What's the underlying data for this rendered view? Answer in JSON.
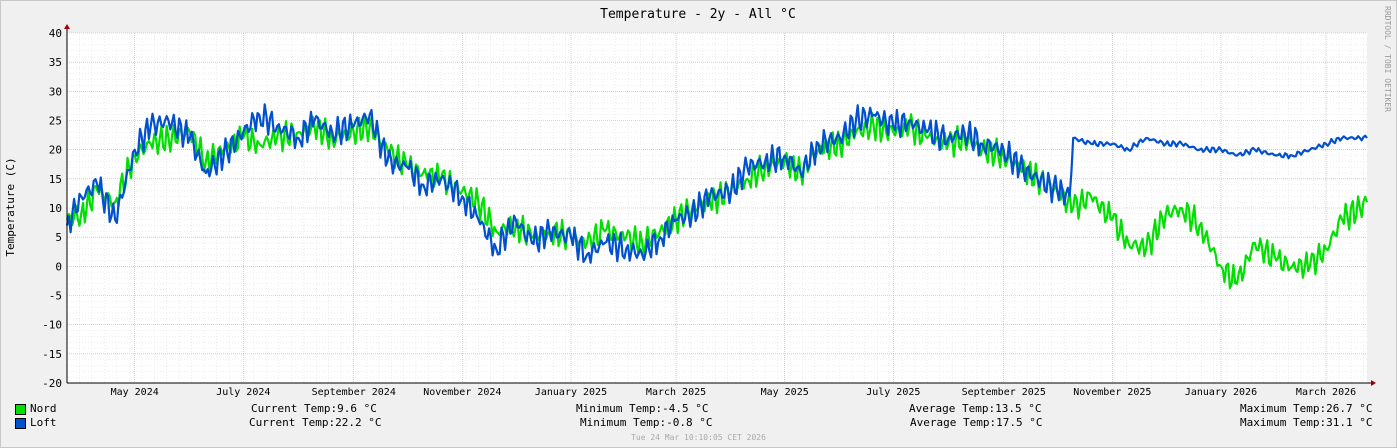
{
  "chart_data": {
    "type": "line",
    "title": "Temperature - 2y - All °C",
    "ylabel": "Temperature (C)",
    "watermark": "RRDTOOL / TOBI OETIKER",
    "timestamp": "Tue 24 Mar 10:10:05 CET 2026",
    "ylim": [
      -20,
      40
    ],
    "ytick_labels": [
      "-20",
      "-15",
      "-10",
      "-5",
      "0",
      "5",
      "10",
      "15",
      "20",
      "25",
      "30",
      "35",
      "40"
    ],
    "x_range": [
      "2024-03-24",
      "2026-03-24"
    ],
    "x_ticks": [
      {
        "date": "2024-05-01",
        "label": "May 2024"
      },
      {
        "date": "2024-07-01",
        "label": "July 2024"
      },
      {
        "date": "2024-09-01",
        "label": "September 2024"
      },
      {
        "date": "2024-11-01",
        "label": "November 2024"
      },
      {
        "date": "2025-01-01",
        "label": "January 2025"
      },
      {
        "date": "2025-03-01",
        "label": "March 2025"
      },
      {
        "date": "2025-05-01",
        "label": "May 2025"
      },
      {
        "date": "2025-07-01",
        "label": "July 2025"
      },
      {
        "date": "2025-09-01",
        "label": "September 2025"
      },
      {
        "date": "2025-11-01",
        "label": "November 2025"
      },
      {
        "date": "2026-01-01",
        "label": "January 2026"
      },
      {
        "date": "2026-03-01",
        "label": "March 2026"
      }
    ],
    "grid": true,
    "legend_position": "bottom",
    "series": [
      {
        "name": "Nord",
        "color": "#00e000",
        "x": [
          "2024-03-24",
          "2024-04-01",
          "2024-04-10",
          "2024-04-20",
          "2024-05-01",
          "2024-05-10",
          "2024-05-20",
          "2024-06-01",
          "2024-06-10",
          "2024-06-20",
          "2024-07-01",
          "2024-07-10",
          "2024-07-20",
          "2024-08-01",
          "2024-08-10",
          "2024-08-20",
          "2024-09-01",
          "2024-09-10",
          "2024-09-20",
          "2024-10-01",
          "2024-10-10",
          "2024-10-20",
          "2024-11-01",
          "2024-11-10",
          "2024-11-20",
          "2024-12-01",
          "2024-12-10",
          "2024-12-20",
          "2025-01-01",
          "2025-01-10",
          "2025-01-20",
          "2025-02-01",
          "2025-02-10",
          "2025-02-20",
          "2025-03-01",
          "2025-03-10",
          "2025-03-20",
          "2025-04-01",
          "2025-04-10",
          "2025-04-20",
          "2025-05-01",
          "2025-05-10",
          "2025-05-20",
          "2025-06-01",
          "2025-06-10",
          "2025-06-20",
          "2025-07-01",
          "2025-07-10",
          "2025-07-20",
          "2025-08-01",
          "2025-08-10",
          "2025-08-20",
          "2025-09-01",
          "2025-09-10",
          "2025-09-20",
          "2025-10-01",
          "2025-10-10",
          "2025-10-20",
          "2025-11-01",
          "2025-11-10",
          "2025-11-20",
          "2025-12-01",
          "2025-12-10",
          "2025-12-20",
          "2026-01-01",
          "2026-01-10",
          "2026-01-20",
          "2026-02-01",
          "2026-02-10",
          "2026-02-20",
          "2026-03-01",
          "2026-03-10",
          "2026-03-20",
          "2026-03-24"
        ],
        "values": [
          8,
          9,
          13,
          11,
          19,
          21,
          22,
          23,
          18,
          20,
          22,
          21,
          22,
          23,
          24,
          22,
          23,
          24,
          20,
          17,
          16,
          15,
          13,
          11,
          6,
          7,
          5,
          6,
          5,
          4,
          6,
          5,
          4,
          6,
          8,
          10,
          11,
          13,
          15,
          17,
          18,
          16,
          20,
          21,
          23,
          24,
          23,
          24,
          22,
          21,
          22,
          20,
          19,
          17,
          15,
          13,
          10,
          12,
          8,
          4,
          3,
          9,
          10,
          7,
          0,
          -3,
          4,
          1,
          0,
          0,
          3,
          8,
          10,
          11
        ]
      },
      {
        "name": "Loft",
        "color": "#0050d0",
        "x": [
          "2024-03-24",
          "2024-04-01",
          "2024-04-10",
          "2024-04-20",
          "2024-05-01",
          "2024-05-10",
          "2024-05-20",
          "2024-06-01",
          "2024-06-10",
          "2024-06-20",
          "2024-07-01",
          "2024-07-10",
          "2024-07-20",
          "2024-08-01",
          "2024-08-10",
          "2024-08-20",
          "2024-09-01",
          "2024-09-10",
          "2024-09-20",
          "2024-10-01",
          "2024-10-10",
          "2024-10-20",
          "2024-11-01",
          "2024-11-10",
          "2024-11-20",
          "2024-12-01",
          "2024-12-10",
          "2024-12-20",
          "2025-01-01",
          "2025-01-10",
          "2025-01-20",
          "2025-02-01",
          "2025-02-10",
          "2025-02-20",
          "2025-03-01",
          "2025-03-10",
          "2025-03-20",
          "2025-04-01",
          "2025-04-10",
          "2025-04-20",
          "2025-05-01",
          "2025-05-10",
          "2025-05-20",
          "2025-06-01",
          "2025-06-10",
          "2025-06-20",
          "2025-07-01",
          "2025-07-10",
          "2025-07-20",
          "2025-08-01",
          "2025-08-10",
          "2025-08-20",
          "2025-09-01",
          "2025-09-10",
          "2025-09-20",
          "2025-10-01",
          "2025-10-08",
          "2025-10-10",
          "2025-10-20",
          "2025-11-01",
          "2025-11-10",
          "2025-11-20",
          "2025-12-01",
          "2025-12-10",
          "2025-12-20",
          "2026-01-01",
          "2026-01-10",
          "2026-01-20",
          "2026-02-01",
          "2026-02-10",
          "2026-02-20",
          "2026-03-01",
          "2026-03-10",
          "2026-03-20",
          "2026-03-24"
        ],
        "values": [
          7,
          12,
          14,
          8,
          20,
          24,
          25,
          22,
          16,
          19,
          23,
          26,
          24,
          22,
          25,
          23,
          24,
          26,
          18,
          17,
          14,
          15,
          12,
          8,
          3,
          8,
          4,
          6,
          5,
          2,
          4,
          3,
          2,
          5,
          8,
          9,
          12,
          13,
          17,
          18,
          19,
          16,
          21,
          22,
          25,
          26,
          24,
          25,
          23,
          22,
          23,
          21,
          20,
          17,
          15,
          13,
          12,
          22,
          21,
          21,
          20,
          22,
          21,
          21,
          20,
          20,
          19,
          20,
          19,
          19,
          20,
          21,
          22,
          22,
          22
        ]
      }
    ]
  },
  "legend": {
    "rows": [
      {
        "name": "Nord",
        "current": "Current Temp:9.6 °C",
        "minimum": "Minimum Temp:-4.5 °C",
        "average": "Average Temp:13.5 °C",
        "maximum": "Maximum Temp:26.7 °C"
      },
      {
        "name": "Loft",
        "current": "Current Temp:22.2 °C",
        "minimum": "Minimum Temp:-0.8 °C",
        "average": "Average Temp:17.5 °C",
        "maximum": "Maximum Temp:31.1 °C"
      }
    ]
  }
}
